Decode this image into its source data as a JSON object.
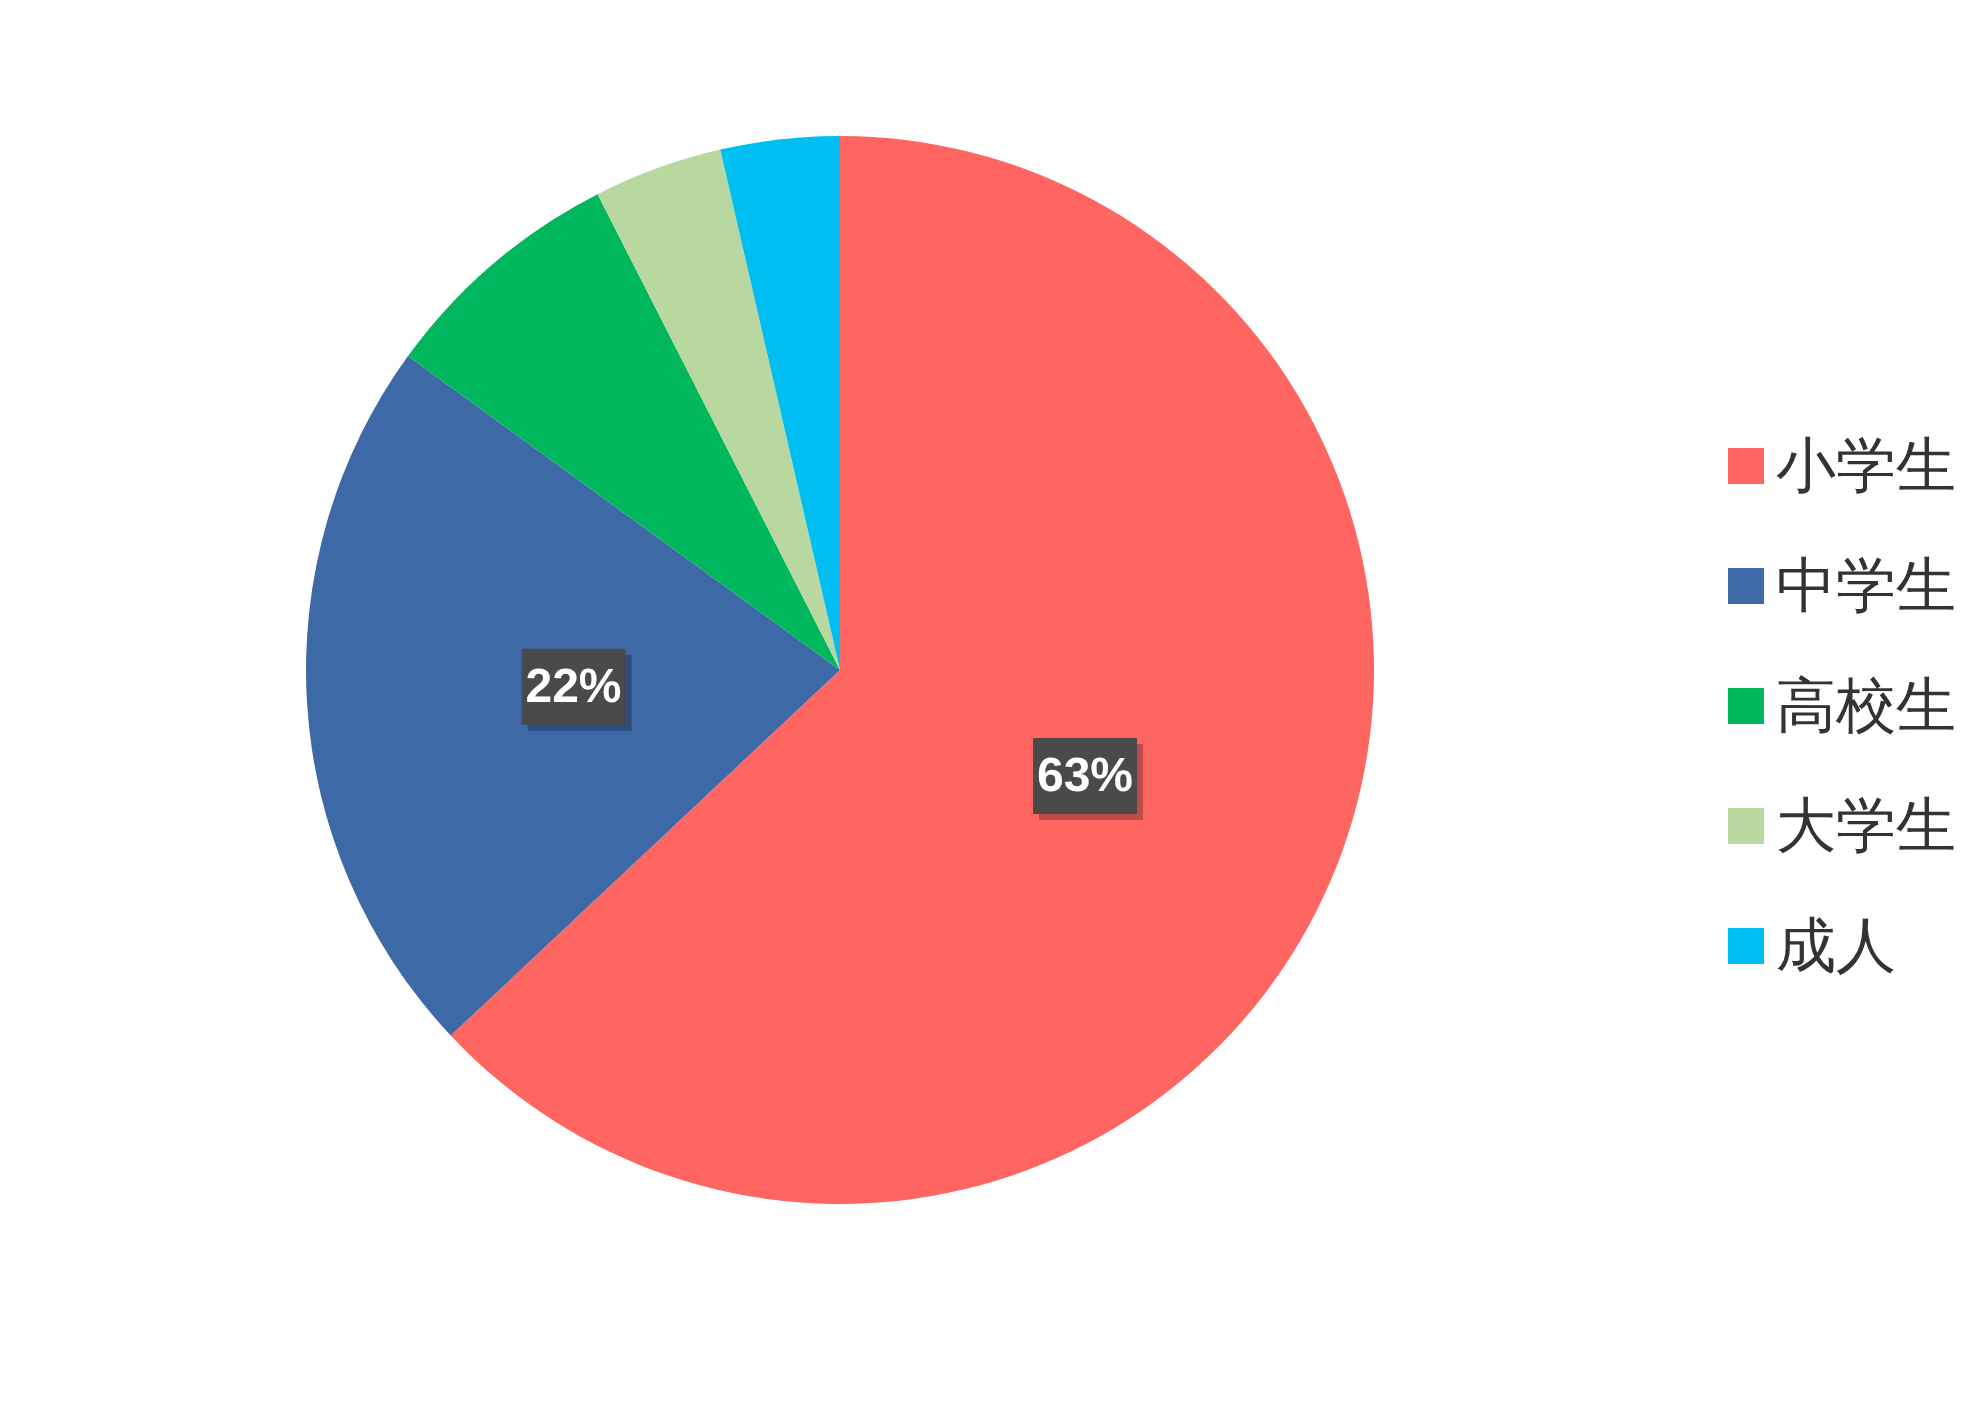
{
  "chart_data": {
    "type": "pie",
    "categories": [
      "小学生",
      "中学生",
      "高校生",
      "大学生",
      "成人"
    ],
    "values": [
      63,
      22,
      7.5,
      3.9,
      3.6
    ],
    "colors": [
      "#ff6661",
      "#3d69a7",
      "#00b75e",
      "#b8d89f",
      "#00bef2"
    ],
    "value_labels": [
      "63%",
      "22%",
      null,
      null,
      null
    ],
    "legend": "right"
  }
}
